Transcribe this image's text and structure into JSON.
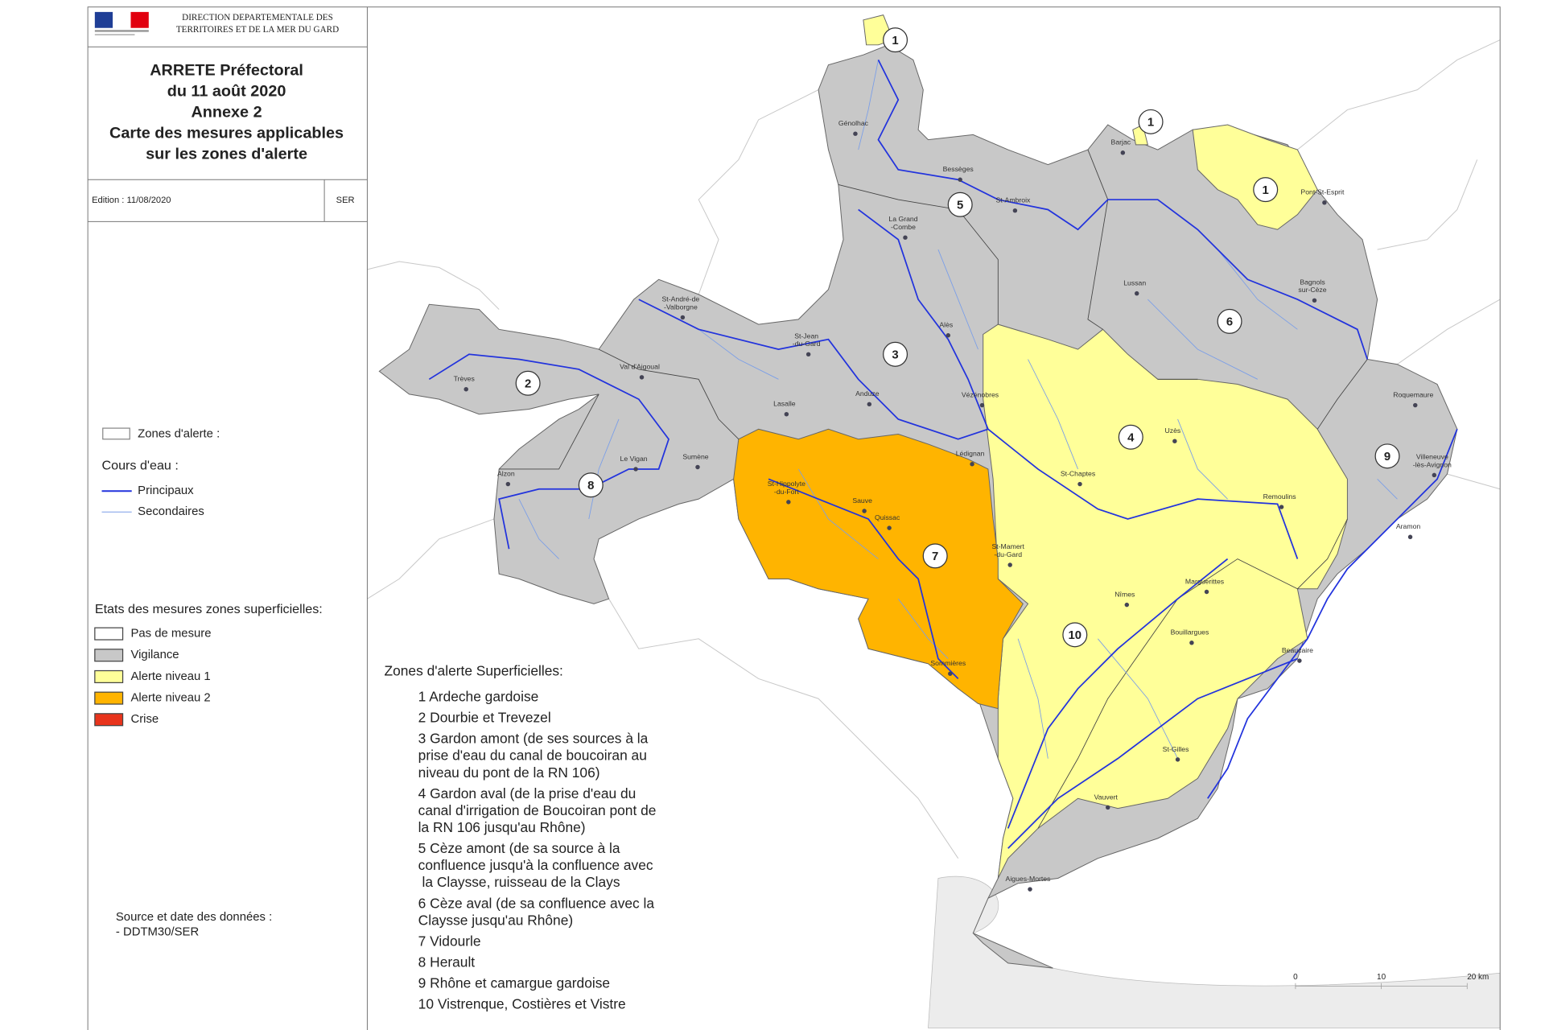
{
  "header": {
    "agency_lines": [
      "DIRECTION DEPARTEMENTALE DES",
      "TERRITOIRES ET DE LA MER DU GARD"
    ],
    "title_lines": [
      "ARRETE Préfectoral",
      "du 11 août 2020",
      "Annexe 2",
      "Carte des mesures applicables",
      "sur les zones d'alerte"
    ],
    "edition": "Edition : 11/08/2020",
    "service": "SER"
  },
  "legend": {
    "zones_label": "Zones d'alerte :",
    "rivers_label": "Cours d'eau :",
    "rivers": [
      {
        "label": "Principaux",
        "color": "#2233dd",
        "width": 1.6
      },
      {
        "label": "Secondaires",
        "color": "#7a9ee8",
        "width": 0.8
      }
    ],
    "states_title": "Etats des mesures zones superficielles:",
    "states": [
      {
        "label": "Pas de mesure",
        "color": "#ffffff"
      },
      {
        "label": "Vigilance",
        "color": "#c8c8c8"
      },
      {
        "label": "Alerte niveau 1",
        "color": "#ffff99"
      },
      {
        "label": "Alerte niveau 2",
        "color": "#ffb400"
      },
      {
        "label": "Crise",
        "color": "#e8341c"
      }
    ]
  },
  "source": {
    "lines": [
      "Source et date des données :",
      "- DDTM30/SER"
    ]
  },
  "zone_list": {
    "title": "Zones d'alerte Superficielles:",
    "items": [
      [
        "1 Ardeche gardoise"
      ],
      [
        "2 Dourbie et Trevezel"
      ],
      [
        "3 Gardon amont (de ses sources à la",
        "prise d'eau du canal de boucoiran au",
        "niveau du pont de la RN 106)"
      ],
      [
        "4 Gardon aval (de la prise d'eau du",
        "canal d'irrigation de Boucoiran pont de",
        "la RN 106 jusqu'au Rhône)"
      ],
      [
        "5 Cèze amont (de sa source à la",
        "confluence jusqu'à la confluence avec",
        " la Claysse, ruisseau de la Clays"
      ],
      [
        "6 Cèze aval (de sa confluence avec la",
        "Claysse jusqu'au Rhône)"
      ],
      [
        "7 Vidourle"
      ],
      [
        "8 Herault"
      ],
      [
        "9 Rhône et camargue gardoise"
      ],
      [
        "10 Vistrenque, Costières et Vistre"
      ]
    ]
  },
  "map": {
    "zone_markers": [
      "1",
      "1",
      "1",
      "5",
      "6",
      "3",
      "2",
      "4",
      "9",
      "8",
      "7",
      "10"
    ],
    "towns": [
      [
        "Génolhac"
      ],
      [
        "Bessèges"
      ],
      [
        "St-Ambroix"
      ],
      [
        "Barjac"
      ],
      [
        "Pont-St-Esprit"
      ],
      [
        "La Grand",
        "-Combe"
      ],
      [
        "Lussan"
      ],
      [
        "Bagnols",
        "sur-Cèze"
      ],
      [
        "St-André-de",
        "-Valborgne"
      ],
      [
        "St-Jean",
        "-du-Gard"
      ],
      [
        "Alès"
      ],
      [
        "Trèves"
      ],
      [
        "Val d'Aigoual"
      ],
      [
        "Lasalle"
      ],
      [
        "Anduze"
      ],
      [
        "Vézénobres"
      ],
      [
        "Roquemaure"
      ],
      [
        "Uzès"
      ],
      [
        "Villeneuve",
        "-lès-Avignon"
      ],
      [
        "Le Vigan"
      ],
      [
        "Sumène"
      ],
      [
        "Lédignan"
      ],
      [
        "St-Hippolyte",
        "-du-Fort"
      ],
      [
        "Alzon"
      ],
      [
        "St-Chaptes"
      ],
      [
        "Remoulins"
      ],
      [
        "Sauve"
      ],
      [
        "Quissac"
      ],
      [
        "Aramon"
      ],
      [
        "St-Mamert",
        "-du-Gard"
      ],
      [
        "Nîmes"
      ],
      [
        "Marguerittes"
      ],
      [
        "Bouillargues"
      ],
      [
        "Beaucaire"
      ],
      [
        "Sommières"
      ],
      [
        "St-Gilles"
      ],
      [
        "Vauvert"
      ],
      [
        "Aigues-Mortes"
      ]
    ],
    "scale_labels": [
      "0",
      "10",
      "20 km"
    ]
  }
}
